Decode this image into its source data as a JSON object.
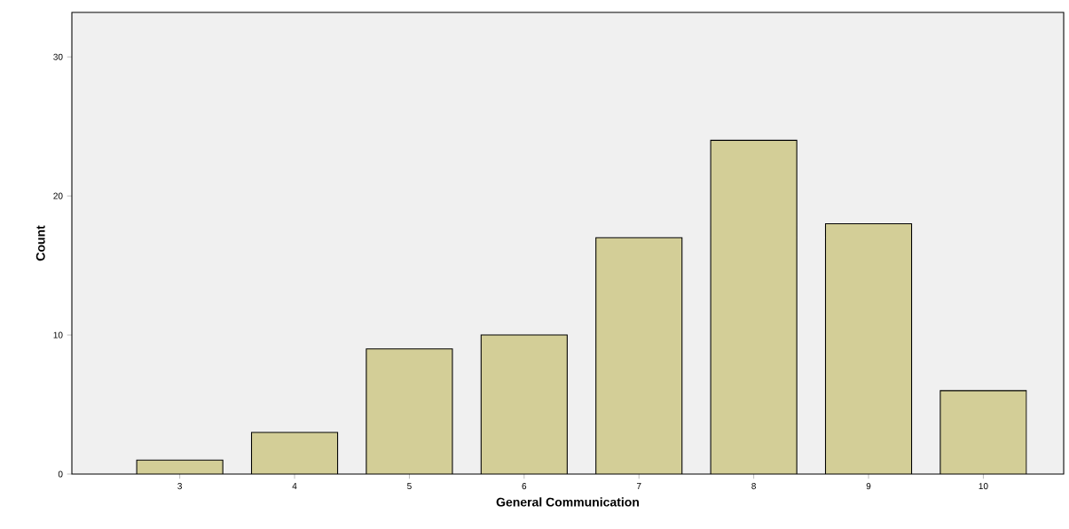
{
  "chart_data": {
    "type": "bar",
    "xlabel": "General Communication",
    "ylabel": "Count",
    "categories": [
      "3",
      "4",
      "5",
      "6",
      "7",
      "8",
      "9",
      "10"
    ],
    "values": [
      1,
      3,
      9,
      10,
      17,
      24,
      18,
      6
    ],
    "color": "#d3ce97",
    "ylim": [
      0,
      33.2
    ],
    "yticks": [
      0,
      10,
      20,
      30
    ],
    "grid": false
  }
}
